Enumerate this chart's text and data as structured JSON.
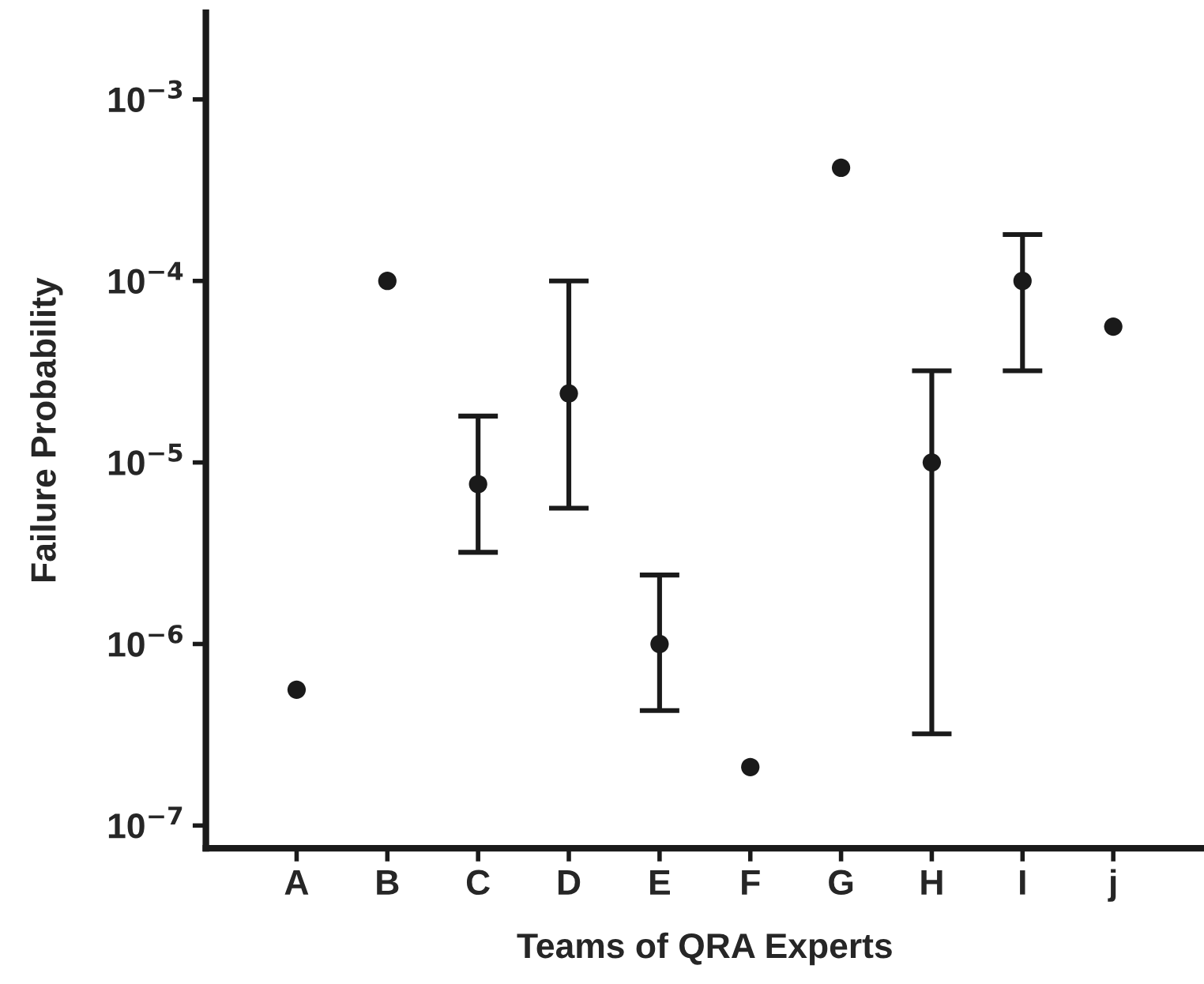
{
  "chart_data": {
    "type": "scatter",
    "xlabel": "Teams of QRA Experts",
    "ylabel": "Failure Probability",
    "categories": [
      "A",
      "B",
      "C",
      "D",
      "E",
      "F",
      "G",
      "H",
      "I",
      "j"
    ],
    "series": [
      {
        "color": "#1a1a1a",
        "values": [
          5.6e-07,
          0.0001,
          7.6e-06,
          2.4e-05,
          1e-06,
          2.1e-07,
          0.00042,
          1e-05,
          0.0001,
          5.6e-05
        ],
        "errors": [
          null,
          null,
          [
            3.2e-06,
            1.8e-05
          ],
          [
            5.6e-06,
            0.0001
          ],
          [
            4.3e-07,
            2.4e-06
          ],
          null,
          null,
          [
            3.2e-07,
            3.2e-05
          ],
          [
            3.2e-05,
            0.00018
          ],
          null
        ]
      }
    ],
    "log": "y",
    "ylim": [
      7.5e-08,
      0.003
    ],
    "yticks": [
      {
        "value": 1e-07,
        "label": "10$^{−7}$"
      },
      {
        "value": 1e-06,
        "label": "10$^{−6}$"
      },
      {
        "value": 1e-05,
        "label": "10$^{−5}$"
      },
      {
        "value": 0.0001,
        "label": "10$^{−4}$"
      },
      {
        "value": 0.001,
        "label": "10$^{−3}$"
      }
    ],
    "marker": "circle",
    "grid": false,
    "legend": false
  }
}
